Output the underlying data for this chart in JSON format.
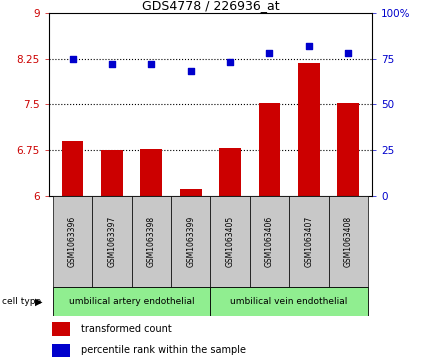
{
  "title": "GDS4778 / 226936_at",
  "samples": [
    "GSM1063396",
    "GSM1063397",
    "GSM1063398",
    "GSM1063399",
    "GSM1063405",
    "GSM1063406",
    "GSM1063407",
    "GSM1063408"
  ],
  "bar_values": [
    6.9,
    6.75,
    6.77,
    6.12,
    6.78,
    7.52,
    8.17,
    7.52
  ],
  "dot_values": [
    75,
    72,
    72,
    68,
    73,
    78,
    82,
    78
  ],
  "ylim_left": [
    6,
    9
  ],
  "ylim_right": [
    0,
    100
  ],
  "yticks_left": [
    6,
    6.75,
    7.5,
    8.25,
    9
  ],
  "yticks_right": [
    0,
    25,
    50,
    75,
    100
  ],
  "ytick_labels_left": [
    "6",
    "6.75",
    "7.5",
    "8.25",
    "9"
  ],
  "ytick_labels_right": [
    "0",
    "25",
    "50",
    "75",
    "100%"
  ],
  "hgrid_lines": [
    6.75,
    7.5,
    8.25
  ],
  "bar_color": "#cc0000",
  "dot_color": "#0000cc",
  "bg_plot": "#ffffff",
  "bg_label": "#c8c8c8",
  "cell_type_group1_label": "umbilical artery endothelial",
  "cell_type_group2_label": "umbilical vein endothelial",
  "cell_type_color": "#90ee90",
  "legend_bar_label": "transformed count",
  "legend_dot_label": "percentile rank within the sample",
  "cell_type_label": "cell type"
}
